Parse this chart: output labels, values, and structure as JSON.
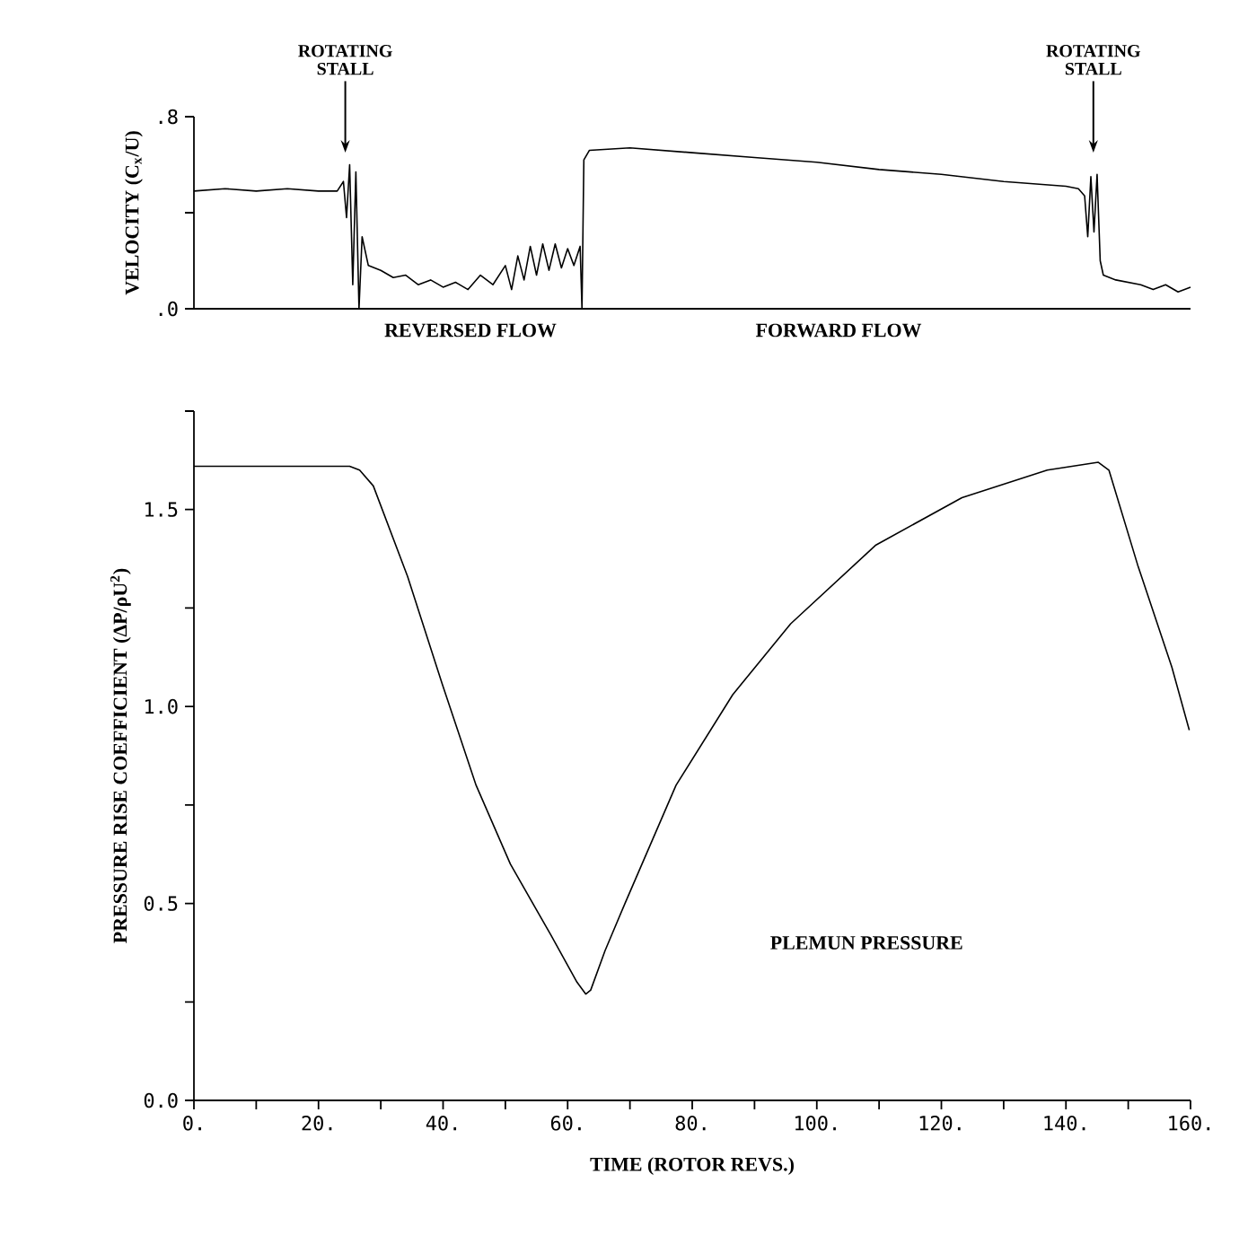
{
  "chart_data": [
    {
      "type": "line",
      "ylabel": "VELOCITY  (C$_{x}$/U)",
      "xlim": [
        0,
        160
      ],
      "ylim": [
        0,
        0.8
      ],
      "yticks": [
        {
          "value": 0,
          "label": ".0"
        },
        {
          "value": 0.4,
          "label": null
        },
        {
          "value": 0.8,
          "label": ".8"
        }
      ],
      "tick_labels": "y",
      "marker": "none",
      "line_style": "solid",
      "series": [
        {
          "color": "#000000",
          "x": [
            0,
            5,
            10,
            15,
            20,
            23,
            24,
            24.5,
            25,
            25.5,
            26,
            26.5,
            27,
            28,
            30,
            32,
            34,
            36,
            38,
            40,
            42,
            44,
            46,
            48,
            50,
            51,
            52,
            53,
            54,
            55,
            56,
            57,
            58,
            59,
            60,
            61,
            62,
            62.3,
            62.6,
            63.5,
            70,
            80,
            90,
            100,
            110,
            120,
            130,
            140,
            142,
            143,
            143.5,
            144,
            144.5,
            145,
            145.5,
            146,
            148,
            150,
            152,
            154,
            156,
            158,
            160
          ],
          "values": [
            0.49,
            0.5,
            0.49,
            0.5,
            0.49,
            0.49,
            0.53,
            0.38,
            0.6,
            0.1,
            0.57,
            0.0,
            0.3,
            0.18,
            0.16,
            0.13,
            0.14,
            0.1,
            0.12,
            0.09,
            0.11,
            0.08,
            0.14,
            0.1,
            0.18,
            0.08,
            0.22,
            0.12,
            0.26,
            0.14,
            0.27,
            0.16,
            0.27,
            0.17,
            0.25,
            0.18,
            0.26,
            0.0,
            0.62,
            0.66,
            0.67,
            0.65,
            0.63,
            0.61,
            0.58,
            0.56,
            0.53,
            0.51,
            0.5,
            0.47,
            0.3,
            0.55,
            0.32,
            0.56,
            0.2,
            0.14,
            0.12,
            0.11,
            0.1,
            0.08,
            0.1,
            0.07,
            0.09
          ]
        }
      ],
      "annotations": [
        "ROTATING STALL",
        "ROTATING STALL",
        "REVERSED FLOW",
        "FORWARD FLOW"
      ]
    },
    {
      "type": "line",
      "xlabel": "TIME (ROTOR REVS.)",
      "ylabel": "PRESSURE RISE COEFFICIENT  (ΔP/ρU$^{2}$)",
      "xlim": [
        0,
        160
      ],
      "ylim": [
        0,
        1.75
      ],
      "xticks": [
        {
          "value": 0,
          "label": "0."
        },
        {
          "value": 10,
          "label": null
        },
        {
          "value": 20,
          "label": "20."
        },
        {
          "value": 30,
          "label": null
        },
        {
          "value": 40,
          "label": "40."
        },
        {
          "value": 50,
          "label": null
        },
        {
          "value": 60,
          "label": "60."
        },
        {
          "value": 70,
          "label": null
        },
        {
          "value": 80,
          "label": "80."
        },
        {
          "value": 90,
          "label": null
        },
        {
          "value": 100,
          "label": "100."
        },
        {
          "value": 110,
          "label": null
        },
        {
          "value": 120,
          "label": "120."
        },
        {
          "value": 130,
          "label": null
        },
        {
          "value": 140,
          "label": "140."
        },
        {
          "value": 150,
          "label": null
        },
        {
          "value": 160,
          "label": "160."
        }
      ],
      "yticks": [
        {
          "value": 0,
          "label": "0.0"
        },
        {
          "value": 0.25,
          "label": null
        },
        {
          "value": 0.5,
          "label": "0.5"
        },
        {
          "value": 0.75,
          "label": null
        },
        {
          "value": 1.0,
          "label": "1.0"
        },
        {
          "value": 1.25,
          "label": null
        },
        {
          "value": 1.5,
          "label": "1.5"
        },
        {
          "value": 1.75,
          "label": null
        }
      ],
      "marker": "none",
      "line_style": "solid",
      "series": [
        {
          "color": "#000000",
          "x": [
            0,
            10,
            20,
            25,
            26.6,
            28.8,
            34.3,
            39.8,
            45.3,
            50.8,
            57.3,
            61.5,
            62.9,
            63.7,
            66,
            69.2,
            77.4,
            86.5,
            95.8,
            109.5,
            123.3,
            137,
            145.2,
            146.9,
            151.5,
            157,
            159.8
          ],
          "values": [
            1.61,
            1.61,
            1.61,
            1.61,
            1.6,
            1.56,
            1.33,
            1.06,
            0.8,
            0.6,
            0.42,
            0.3,
            0.27,
            0.28,
            0.38,
            0.5,
            0.8,
            1.03,
            1.21,
            1.41,
            1.53,
            1.6,
            1.62,
            1.6,
            1.36,
            1.1,
            0.94
          ]
        }
      ],
      "annotations": [
        "PLEMUN PRESSURE"
      ]
    }
  ]
}
